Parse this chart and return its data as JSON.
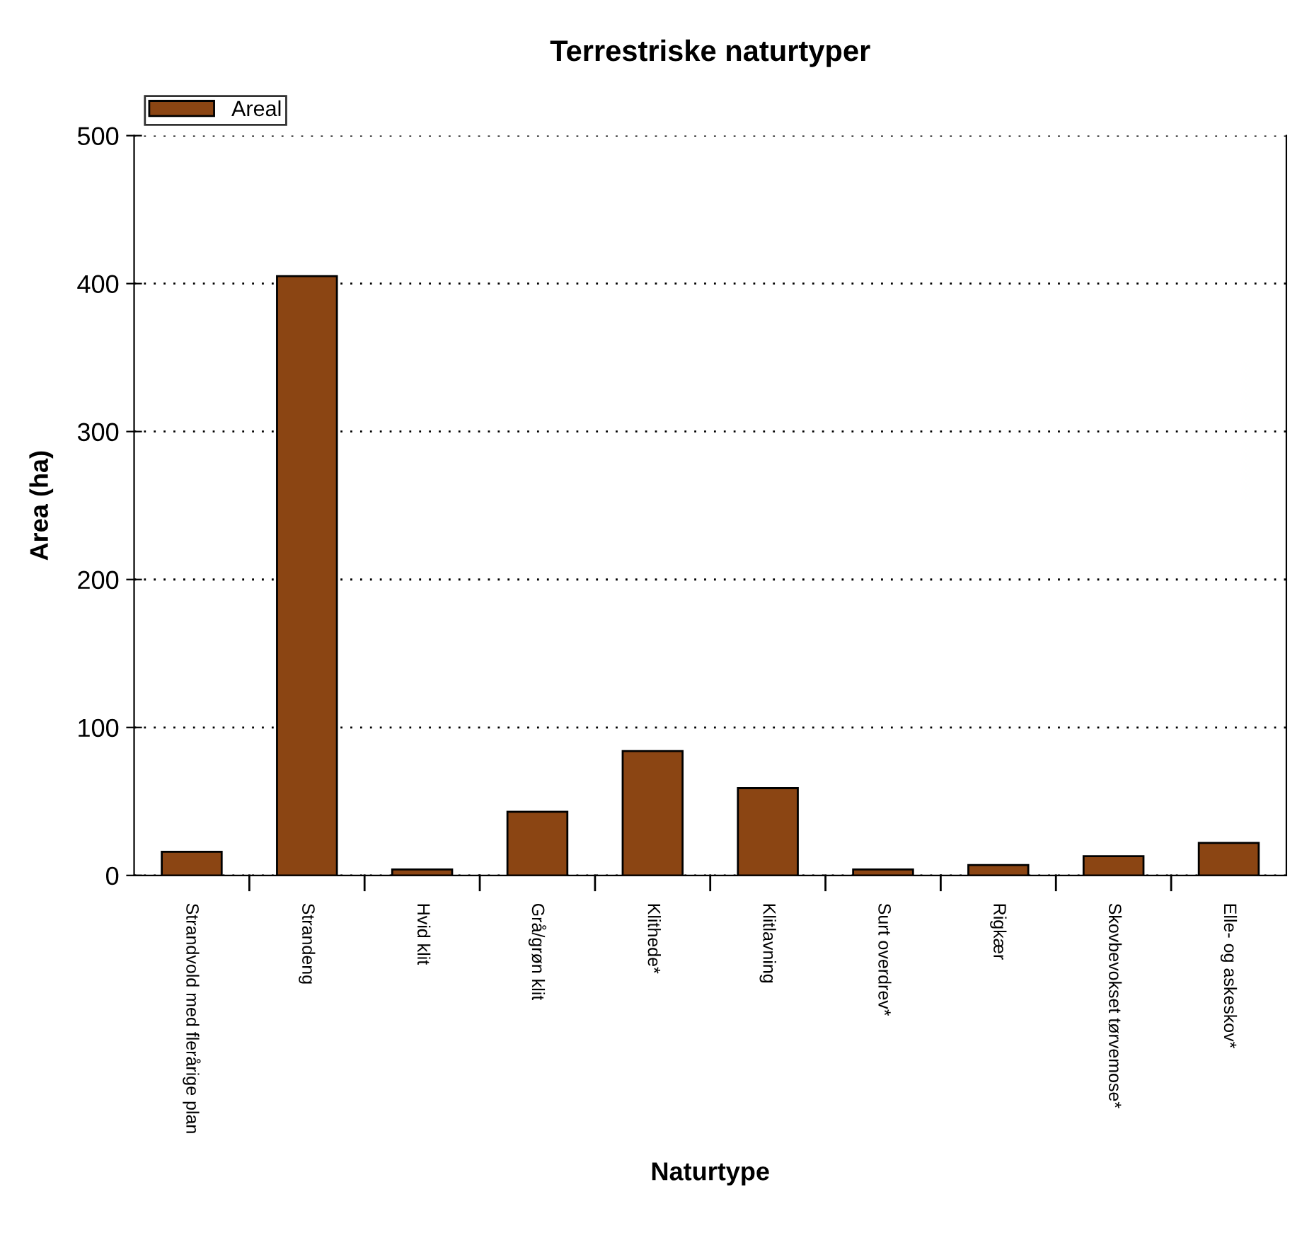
{
  "chart_data": {
    "type": "bar",
    "title": "Terrestriske naturtyper",
    "xlabel": "Naturtype",
    "ylabel": "Area (ha)",
    "categories": [
      "Strandvold med flerårige plan",
      "Strandeng",
      "Hvid klit",
      "Grå/grøn klit",
      "Klithede*",
      "Klitlavning",
      "Surt overdrev*",
      "Rigkær",
      "Skovbevokset tørvemose*",
      "Elle- og askeskov*"
    ],
    "series": [
      {
        "name": "Areal",
        "color": "#8b4513",
        "values": [
          16,
          405,
          4,
          43,
          84,
          59,
          4,
          7,
          13,
          22
        ]
      }
    ],
    "ylim": [
      0,
      500
    ],
    "yticks": [
      0,
      100,
      200,
      300,
      400,
      500
    ],
    "grid": "y",
    "legend": "top left"
  }
}
